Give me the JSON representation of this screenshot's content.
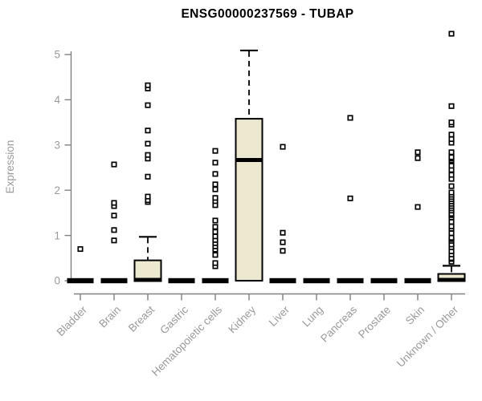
{
  "chart_data": {
    "type": "boxplot",
    "title": "ENSG00000237569 - TUBAP",
    "ylabel": "Expression",
    "xlabel": "",
    "ylim": [
      0,
      5.6
    ],
    "yticks": [
      0,
      1,
      2,
      3,
      4,
      5
    ],
    "grid": false,
    "legend": false,
    "colors": {
      "box_fill": "#EDE9D0",
      "box_stroke": "#000000",
      "median": "#000000",
      "outlier_stroke": "#000000",
      "outlier_fill": "#FFFFFF",
      "axis_line": "#808080",
      "tick_label": "#9A9A9A",
      "title_color": "#000000"
    },
    "categories": [
      "Bladder",
      "Brain",
      "Breast",
      "Gastric",
      "Hematopoietic cells",
      "Kidney",
      "Liver",
      "Lung",
      "Pancreas",
      "Prostate",
      "Skin",
      "Unknown / Other"
    ],
    "boxes": [
      {
        "category": "Bladder",
        "q1": 0,
        "median": 0,
        "q3": 0,
        "whisker_low": 0,
        "whisker_high": 0,
        "outliers": [
          0.7
        ]
      },
      {
        "category": "Brain",
        "q1": 0,
        "median": 0,
        "q3": 0,
        "whisker_low": 0,
        "whisker_high": 0,
        "outliers": [
          0.89,
          1.12,
          1.44,
          1.65,
          1.72,
          2.57
        ]
      },
      {
        "category": "Breast",
        "q1": 0,
        "median": 0,
        "q3": 0.45,
        "whisker_low": 0,
        "whisker_high": 0.97,
        "outliers": [
          1.74,
          1.78,
          1.86,
          2.3,
          2.7,
          2.78,
          3.03,
          3.32,
          3.88,
          4.25,
          4.32
        ]
      },
      {
        "category": "Gastric",
        "q1": 0,
        "median": 0,
        "q3": 0,
        "whisker_low": 0,
        "whisker_high": 0,
        "outliers": []
      },
      {
        "category": "Hematopoietic cells",
        "q1": 0,
        "median": 0,
        "q3": 0,
        "whisker_low": 0,
        "whisker_high": 0,
        "outliers": [
          0.32,
          0.39,
          0.57,
          0.69,
          0.76,
          0.83,
          0.9,
          0.98,
          1.08,
          1.19,
          1.33,
          1.67,
          1.76,
          1.83,
          2.02,
          2.13,
          2.36,
          2.61,
          2.87
        ]
      },
      {
        "category": "Kidney",
        "q1": 0,
        "median": 2.65,
        "q3": 3.58,
        "whisker_low": 0,
        "whisker_high": 5.09,
        "outliers": []
      },
      {
        "category": "Liver",
        "q1": 0,
        "median": 0,
        "q3": 0,
        "whisker_low": 0,
        "whisker_high": 0,
        "outliers": [
          0.66,
          0.85,
          1.06,
          2.96
        ]
      },
      {
        "category": "Lung",
        "q1": 0,
        "median": 0,
        "q3": 0,
        "whisker_low": 0,
        "whisker_high": 0,
        "outliers": []
      },
      {
        "category": "Pancreas",
        "q1": 0,
        "median": 0,
        "q3": 0,
        "whisker_low": 0,
        "whisker_high": 0,
        "outliers": [
          1.82,
          3.6
        ]
      },
      {
        "category": "Prostate",
        "q1": 0,
        "median": 0,
        "q3": 0,
        "whisker_low": 0,
        "whisker_high": 0,
        "outliers": []
      },
      {
        "category": "Skin",
        "q1": 0,
        "median": 0,
        "q3": 0,
        "whisker_low": 0,
        "whisker_high": 0,
        "outliers": [
          1.63,
          2.71,
          2.84
        ]
      },
      {
        "category": "Unknown / Other",
        "q1": 0,
        "median": 0,
        "q3": 0.15,
        "whisker_low": 0,
        "whisker_high": 0.33,
        "outliers": [
          0.42,
          0.48,
          0.5,
          0.58,
          0.65,
          0.74,
          0.8,
          0.88,
          0.92,
          0.95,
          1.05,
          1.15,
          1.2,
          1.3,
          1.4,
          1.45,
          1.48,
          1.55,
          1.6,
          1.65,
          1.7,
          1.75,
          1.8,
          1.85,
          1.9,
          1.95,
          2.09,
          2.25,
          2.34,
          2.45,
          2.54,
          2.66,
          2.7,
          2.73,
          2.84,
          3.05,
          3.13,
          3.23,
          3.45,
          3.5,
          3.86,
          5.46
        ]
      }
    ]
  }
}
